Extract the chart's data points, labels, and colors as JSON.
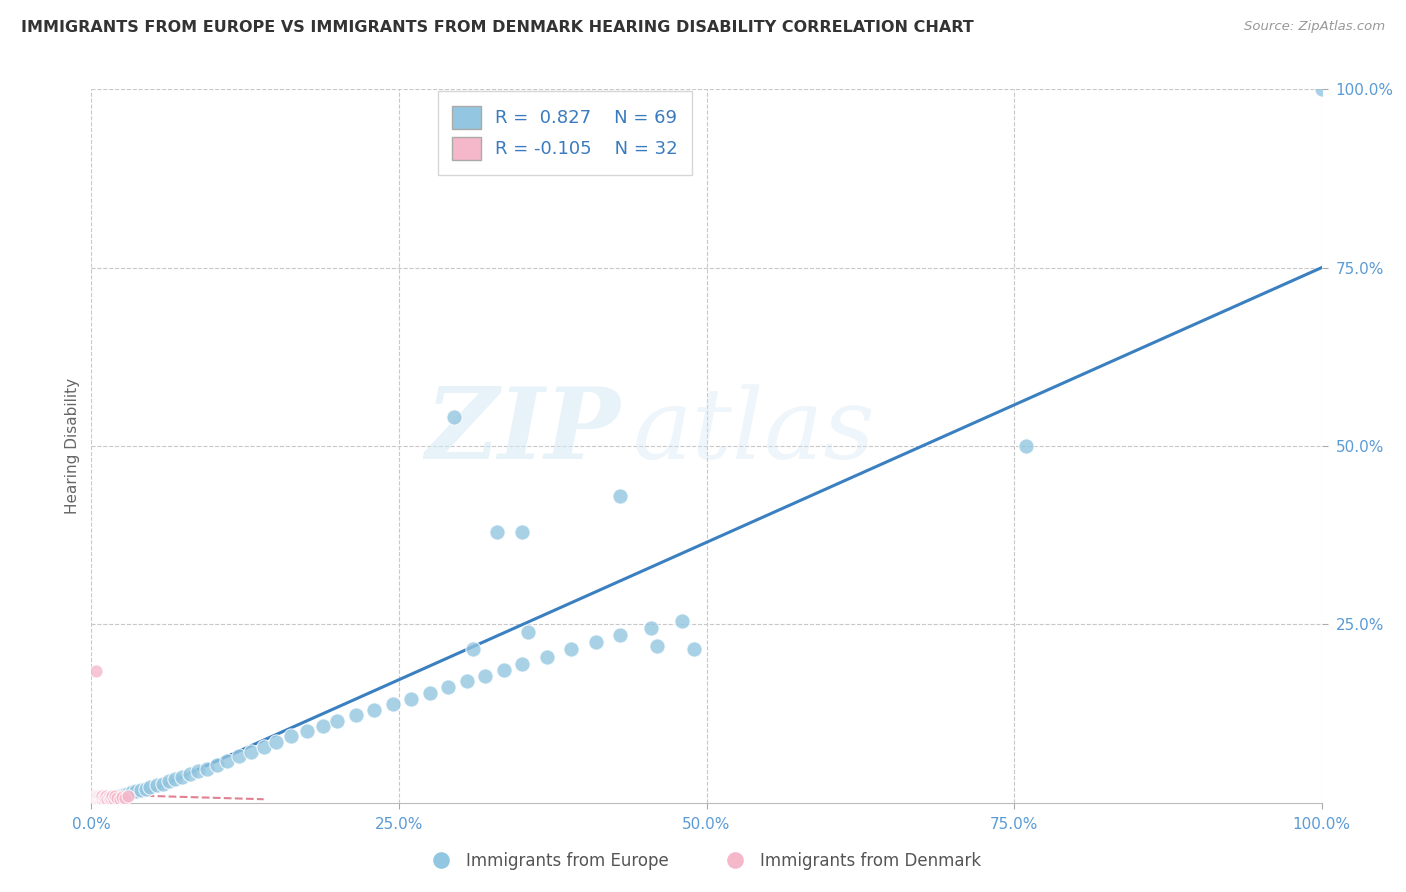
{
  "title": "IMMIGRANTS FROM EUROPE VS IMMIGRANTS FROM DENMARK HEARING DISABILITY CORRELATION CHART",
  "source": "Source: ZipAtlas.com",
  "ylabel": "Hearing Disability",
  "xlim": [
    0.0,
    1.0
  ],
  "ylim": [
    0.0,
    1.0
  ],
  "xtick_vals": [
    0.0,
    0.25,
    0.5,
    0.75,
    1.0
  ],
  "xtick_labels": [
    "0.0%",
    "25.0%",
    "50.0%",
    "75.0%",
    "100.0%"
  ],
  "ytick_vals": [
    0.25,
    0.5,
    0.75,
    1.0
  ],
  "ytick_labels": [
    "25.0%",
    "50.0%",
    "75.0%",
    "100.0%"
  ],
  "blue_color": "#93c6e0",
  "pink_color": "#f5b8cb",
  "blue_line_color": "#3a80c0",
  "pink_line_color": "#e08090",
  "R_blue": 0.827,
  "N_blue": 69,
  "R_pink": -0.105,
  "N_pink": 32,
  "legend_label_blue": "Immigrants from Europe",
  "legend_label_pink": "Immigrants from Denmark",
  "watermark_zip": "ZIP",
  "watermark_atlas": "atlas",
  "title_color": "#333333",
  "tick_color": "#5b9bd5",
  "legend_text_color": "#3a7bbf",
  "grid_color": "#c8c8c8",
  "blue_line_x0": 0.0,
  "blue_line_y0": -0.02,
  "blue_line_x1": 1.0,
  "blue_line_y1": 0.75,
  "pink_line_x0": 0.0,
  "pink_line_y0": 0.012,
  "pink_line_x1": 0.14,
  "pink_line_y1": 0.005,
  "blue_scatter_x": [
    0.005,
    0.007,
    0.008,
    0.009,
    0.01,
    0.011,
    0.012,
    0.013,
    0.014,
    0.015,
    0.016,
    0.017,
    0.018,
    0.019,
    0.02,
    0.022,
    0.024,
    0.026,
    0.028,
    0.03,
    0.033,
    0.036,
    0.04,
    0.044,
    0.048,
    0.053,
    0.058,
    0.063,
    0.068,
    0.074,
    0.08,
    0.087,
    0.094,
    0.102,
    0.11,
    0.12,
    0.13,
    0.14,
    0.15,
    0.162,
    0.175,
    0.188,
    0.2,
    0.215,
    0.23,
    0.245,
    0.26,
    0.275,
    0.29,
    0.305,
    0.32,
    0.335,
    0.35,
    0.37,
    0.39,
    0.41,
    0.43,
    0.455,
    0.48,
    0.31,
    0.33,
    0.35,
    0.355,
    0.43,
    0.46,
    0.49,
    0.76,
    1.0,
    0.295
  ],
  "blue_scatter_y": [
    0.003,
    0.004,
    0.003,
    0.005,
    0.004,
    0.005,
    0.006,
    0.004,
    0.006,
    0.005,
    0.006,
    0.007,
    0.006,
    0.007,
    0.008,
    0.009,
    0.01,
    0.011,
    0.012,
    0.013,
    0.015,
    0.016,
    0.018,
    0.02,
    0.022,
    0.025,
    0.027,
    0.03,
    0.033,
    0.036,
    0.04,
    0.044,
    0.048,
    0.053,
    0.058,
    0.065,
    0.071,
    0.078,
    0.085,
    0.093,
    0.1,
    0.108,
    0.115,
    0.123,
    0.13,
    0.138,
    0.146,
    0.154,
    0.162,
    0.17,
    0.178,
    0.186,
    0.195,
    0.205,
    0.215,
    0.225,
    0.235,
    0.245,
    0.255,
    0.215,
    0.38,
    0.38,
    0.24,
    0.43,
    0.22,
    0.215,
    0.5,
    1.0,
    0.54
  ],
  "pink_scatter_x": [
    0.002,
    0.003,
    0.003,
    0.004,
    0.004,
    0.005,
    0.005,
    0.006,
    0.006,
    0.007,
    0.007,
    0.008,
    0.008,
    0.009,
    0.009,
    0.01,
    0.01,
    0.011,
    0.012,
    0.013,
    0.014,
    0.015,
    0.016,
    0.017,
    0.018,
    0.019,
    0.021,
    0.023,
    0.025,
    0.027,
    0.03,
    0.004
  ],
  "pink_scatter_y": [
    0.005,
    0.007,
    0.01,
    0.004,
    0.008,
    0.006,
    0.01,
    0.005,
    0.009,
    0.004,
    0.008,
    0.005,
    0.009,
    0.006,
    0.01,
    0.004,
    0.008,
    0.007,
    0.009,
    0.006,
    0.008,
    0.005,
    0.007,
    0.009,
    0.006,
    0.01,
    0.007,
    0.006,
    0.008,
    0.007,
    0.009,
    0.185
  ]
}
